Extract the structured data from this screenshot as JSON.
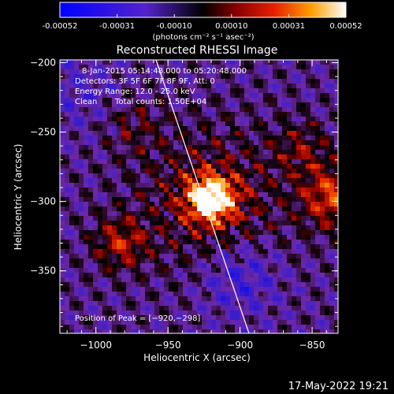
{
  "colorbar": {
    "ticks": [
      "-0.00052",
      "-0.00031",
      "-0.00010",
      "0.00010",
      "0.00031",
      "0.00052"
    ],
    "unit_label": "(photons cm⁻² s⁻¹ asec⁻²)"
  },
  "chart_data": {
    "type": "heatmap",
    "title": "Reconstructed RHESSI Image",
    "xlabel": "Heliocentric X (arcsec)",
    "ylabel": "Heliocentric Y (arcsec)",
    "xlim": [
      -1025,
      -832
    ],
    "ylim": [
      -395,
      -198
    ],
    "xticks": [
      "−1000",
      "−950",
      "−900",
      "−850"
    ],
    "yticks": [
      "−200",
      "−250",
      "−300",
      "−350"
    ],
    "xtick_values": [
      -1000,
      -950,
      -900,
      -850
    ],
    "ytick_values": [
      -200,
      -250,
      -300,
      -350
    ],
    "zlim": [
      -0.00052,
      0.00052
    ],
    "peak": [
      -920,
      -298
    ],
    "annotations": {
      "time_range": "8-Jan-2015 05:14:48.000 to 05:20:48.000",
      "detectors": "Detectors: 3F 5F 6F 7F 8F 9F, Att: 0",
      "energy": "Energy Range: 12.0 - 25.0 keV",
      "clean": "Clean",
      "counts": "Total counts: 1.50E+04",
      "peak_label": "Position of Peak = [−920,−298]"
    }
  },
  "footer": {
    "timestamp": "17-May-2022 19:21"
  }
}
